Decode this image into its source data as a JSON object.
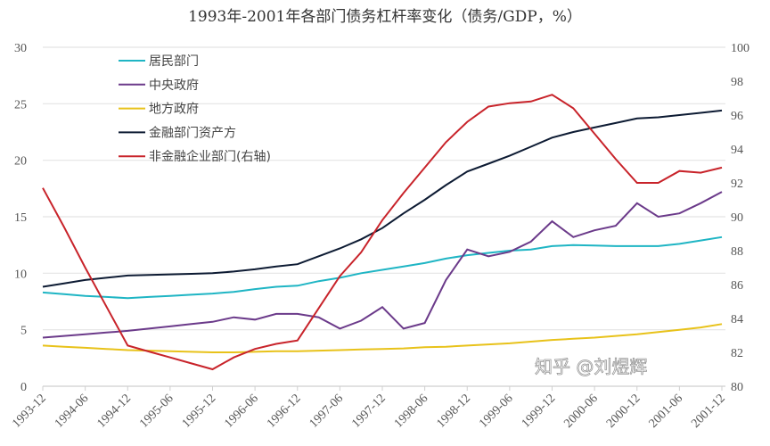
{
  "chart_data": {
    "type": "line",
    "title": "1993年-2001年各部门债务杠杆率变化（债务/GDP，%）",
    "x_tick_labels": [
      "1993-12",
      "1994-06",
      "1994-12",
      "1995-06",
      "1995-12",
      "1996-06",
      "1996-12",
      "1997-06",
      "1997-12",
      "1998-06",
      "1998-12",
      "1999-06",
      "1999-12",
      "2000-06",
      "2000-12",
      "2001-06",
      "2001-12"
    ],
    "x_frequency": "quarterly",
    "x_start": "1993-12",
    "x_end": "2001-12",
    "y_left": {
      "range": [
        0,
        30
      ],
      "ticks": [
        0,
        5,
        10,
        15,
        20,
        25,
        30
      ]
    },
    "y_right": {
      "range": [
        80,
        100
      ],
      "ticks": [
        80,
        82,
        84,
        86,
        88,
        90,
        92,
        94,
        96,
        98,
        100
      ]
    },
    "grid": "horizontal",
    "legend_placement": "top-left",
    "series": [
      {
        "name": "居民部门",
        "axis": "left",
        "color": "#1fb5c4",
        "values": [
          8.3,
          8.15,
          8.0,
          7.9,
          7.8,
          7.9,
          8.0,
          8.1,
          8.2,
          8.35,
          8.6,
          8.8,
          8.9,
          9.3,
          9.6,
          10.0,
          10.3,
          10.6,
          10.9,
          11.3,
          11.6,
          11.8,
          12.0,
          12.1,
          12.4,
          12.5,
          12.45,
          12.4,
          12.4,
          12.4,
          12.6,
          12.9,
          13.2
        ]
      },
      {
        "name": "中央政府",
        "axis": "left",
        "color": "#6b3a8a",
        "values": [
          4.3,
          4.45,
          4.6,
          4.75,
          4.9,
          5.1,
          5.3,
          5.5,
          5.7,
          6.1,
          5.9,
          6.4,
          6.4,
          6.1,
          5.1,
          5.8,
          7.0,
          5.1,
          5.6,
          9.4,
          12.1,
          11.5,
          11.9,
          12.8,
          14.6,
          13.2,
          13.8,
          14.2,
          16.2,
          15.0,
          15.3,
          16.2,
          17.2
        ]
      },
      {
        "name": "地方政府",
        "axis": "left",
        "color": "#e8c21a",
        "values": [
          3.6,
          3.5,
          3.4,
          3.3,
          3.2,
          3.15,
          3.1,
          3.05,
          3.0,
          3.0,
          3.05,
          3.1,
          3.1,
          3.15,
          3.2,
          3.25,
          3.3,
          3.35,
          3.45,
          3.5,
          3.6,
          3.7,
          3.8,
          3.95,
          4.1,
          4.2,
          4.3,
          4.45,
          4.6,
          4.8,
          5.0,
          5.2,
          5.5
        ]
      },
      {
        "name": "金融部门资产方",
        "axis": "left",
        "color": "#0d1b33",
        "values": [
          8.8,
          9.1,
          9.4,
          9.6,
          9.8,
          9.85,
          9.9,
          9.95,
          10.0,
          10.15,
          10.35,
          10.6,
          10.8,
          11.5,
          12.2,
          13.0,
          14.0,
          15.3,
          16.5,
          17.8,
          19.0,
          19.7,
          20.4,
          21.2,
          22.0,
          22.5,
          22.9,
          23.3,
          23.7,
          23.8,
          24.0,
          24.2,
          24.4
        ]
      },
      {
        "name": "非金融企业部门(右轴)",
        "axis": "right",
        "color": "#c8232a",
        "values": [
          91.7,
          89.4,
          87.0,
          84.7,
          82.4,
          82.05,
          81.7,
          81.35,
          81.0,
          81.7,
          82.2,
          82.5,
          82.7,
          84.6,
          86.5,
          87.9,
          89.8,
          91.4,
          92.9,
          94.4,
          95.6,
          96.5,
          96.7,
          96.8,
          97.2,
          96.4,
          94.9,
          93.4,
          92.0,
          92.0,
          92.7,
          92.6,
          92.9
        ]
      }
    ]
  },
  "watermark": "知乎 @刘煜辉"
}
